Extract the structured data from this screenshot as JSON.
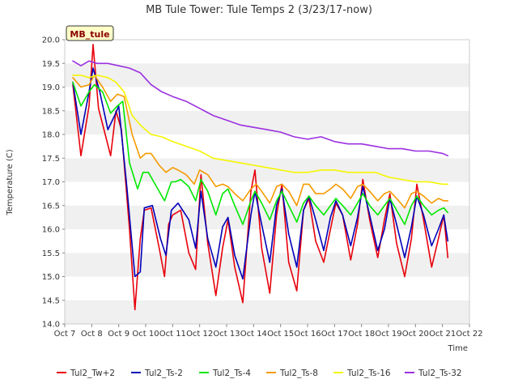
{
  "chart_data": {
    "type": "line",
    "title": "MB Tule Tower: Tule Temps 2 (3/23/17-now)",
    "xlabel": "Time",
    "ylabel": "Temperature (C)",
    "xlim": [
      0,
      15
    ],
    "ylim": [
      14.0,
      20.0
    ],
    "x_ticks": [
      0,
      1,
      2,
      3,
      4,
      5,
      6,
      7,
      8,
      9,
      10,
      11,
      12,
      13,
      14,
      15
    ],
    "x_tick_labels": [
      "Oct 7",
      "Oct 8",
      "Oct 9",
      "Oct 10",
      "Oct 11",
      "Oct 12",
      "Oct 13",
      "Oct 14",
      "Oct 15",
      "Oct 16",
      "Oct 17",
      "Oct 18",
      "Oct 19",
      "Oct 20",
      "Oct 21",
      "Oct 22"
    ],
    "y_ticks": [
      14.0,
      14.5,
      15.0,
      15.5,
      16.0,
      16.5,
      17.0,
      17.5,
      18.0,
      18.5,
      19.0,
      19.5,
      20.0
    ],
    "y_tick_labels": [
      "14.0",
      "14.5",
      "15.0",
      "15.5",
      "16.0",
      "16.5",
      "17.0",
      "17.5",
      "18.0",
      "18.5",
      "19.0",
      "19.5",
      "20.0"
    ],
    "grid": "horizontal alternating bands",
    "legend_position": "bottom",
    "annotation": "MB_tule",
    "series": [
      {
        "name": "Tul2_Tw+2",
        "color": "#e8000b",
        "x": [
          0.3,
          0.6,
          0.9,
          1.05,
          1.25,
          1.5,
          1.7,
          1.9,
          2.1,
          2.4,
          2.6,
          2.8,
          2.95,
          3.2,
          3.5,
          3.7,
          3.85,
          4.0,
          4.3,
          4.6,
          4.85,
          5.05,
          5.3,
          5.6,
          5.85,
          6.05,
          6.3,
          6.6,
          6.9,
          7.05,
          7.3,
          7.6,
          7.85,
          8.05,
          8.3,
          8.6,
          8.85,
          9.05,
          9.3,
          9.6,
          9.85,
          10.05,
          10.3,
          10.6,
          10.85,
          11.05,
          11.3,
          11.6,
          11.85,
          12.05,
          12.3,
          12.6,
          12.85,
          13.05,
          13.3,
          13.6,
          13.85,
          14.05,
          14.2
        ],
        "y": [
          19.05,
          17.55,
          18.6,
          19.9,
          18.55,
          18.0,
          17.55,
          18.5,
          18.1,
          16.0,
          14.3,
          15.8,
          16.4,
          16.45,
          15.6,
          15.0,
          16.1,
          16.3,
          16.4,
          15.5,
          15.15,
          17.15,
          15.7,
          14.6,
          15.6,
          16.2,
          15.2,
          14.45,
          16.8,
          17.25,
          15.6,
          14.65,
          16.3,
          16.95,
          15.3,
          14.7,
          16.4,
          16.65,
          15.75,
          15.3,
          16.0,
          16.55,
          16.3,
          15.35,
          16.1,
          17.05,
          16.2,
          15.4,
          16.2,
          16.75,
          15.7,
          15.0,
          15.8,
          16.95,
          16.2,
          15.2,
          15.8,
          16.3,
          15.4
        ]
      },
      {
        "name": "Tul2_Ts-2",
        "color": "#0000b8",
        "x": [
          0.3,
          0.6,
          0.9,
          1.05,
          1.3,
          1.6,
          1.85,
          2.0,
          2.3,
          2.6,
          2.8,
          2.95,
          3.25,
          3.55,
          3.75,
          3.95,
          4.2,
          4.6,
          4.85,
          5.05,
          5.3,
          5.6,
          5.85,
          6.05,
          6.3,
          6.6,
          6.9,
          7.05,
          7.3,
          7.6,
          7.85,
          8.05,
          8.3,
          8.6,
          8.85,
          9.05,
          9.3,
          9.6,
          9.85,
          10.05,
          10.3,
          10.6,
          10.85,
          11.05,
          11.3,
          11.6,
          11.85,
          12.05,
          12.3,
          12.6,
          12.85,
          13.05,
          13.3,
          13.6,
          13.85,
          14.05,
          14.2
        ],
        "y": [
          19.1,
          18.0,
          18.9,
          19.4,
          18.9,
          18.1,
          18.4,
          18.6,
          16.9,
          15.0,
          15.1,
          16.45,
          16.5,
          15.8,
          15.45,
          16.4,
          16.55,
          16.2,
          15.6,
          16.8,
          15.8,
          15.2,
          16.05,
          16.25,
          15.45,
          14.95,
          16.3,
          16.8,
          16.1,
          15.3,
          16.5,
          16.85,
          15.9,
          15.2,
          16.4,
          16.7,
          16.2,
          15.55,
          16.25,
          16.6,
          16.3,
          15.65,
          16.25,
          16.9,
          16.3,
          15.55,
          16.0,
          16.65,
          16.1,
          15.4,
          16.05,
          16.7,
          16.3,
          15.65,
          16.0,
          16.3,
          15.75
        ]
      },
      {
        "name": "Tul2_Ts-4",
        "color": "#00e800",
        "x": [
          0.3,
          0.6,
          0.9,
          1.1,
          1.4,
          1.7,
          1.95,
          2.15,
          2.4,
          2.7,
          2.9,
          3.1,
          3.4,
          3.7,
          3.95,
          4.1,
          4.3,
          4.6,
          4.85,
          5.05,
          5.3,
          5.6,
          5.85,
          6.05,
          6.3,
          6.6,
          6.9,
          7.05,
          7.3,
          7.6,
          7.85,
          8.05,
          8.3,
          8.6,
          8.85,
          9.05,
          9.3,
          9.6,
          9.85,
          10.05,
          10.3,
          10.6,
          10.85,
          11.05,
          11.3,
          11.6,
          11.85,
          12.05,
          12.3,
          12.6,
          12.85,
          13.05,
          13.3,
          13.6,
          13.85,
          14.05,
          14.2
        ],
        "y": [
          19.1,
          18.6,
          18.9,
          19.05,
          18.9,
          18.45,
          18.6,
          18.7,
          17.4,
          16.85,
          17.2,
          17.2,
          16.9,
          16.6,
          17.0,
          17.0,
          17.05,
          16.9,
          16.6,
          17.05,
          16.8,
          16.3,
          16.75,
          16.85,
          16.5,
          16.1,
          16.6,
          16.8,
          16.55,
          16.2,
          16.6,
          16.8,
          16.5,
          16.15,
          16.55,
          16.7,
          16.5,
          16.3,
          16.5,
          16.65,
          16.5,
          16.3,
          16.55,
          16.75,
          16.5,
          16.3,
          16.5,
          16.65,
          16.4,
          16.1,
          16.5,
          16.7,
          16.5,
          16.3,
          16.4,
          16.45,
          16.35
        ]
      },
      {
        "name": "Tul2_Ts-8",
        "color": "#f59a00",
        "x": [
          0.3,
          0.6,
          0.9,
          1.1,
          1.4,
          1.7,
          1.95,
          2.2,
          2.5,
          2.8,
          3.0,
          3.2,
          3.5,
          3.75,
          4.0,
          4.2,
          4.5,
          4.8,
          5.0,
          5.3,
          5.6,
          5.85,
          6.05,
          6.3,
          6.6,
          6.9,
          7.1,
          7.3,
          7.6,
          7.85,
          8.05,
          8.3,
          8.6,
          8.85,
          9.05,
          9.3,
          9.6,
          9.85,
          10.05,
          10.3,
          10.6,
          10.85,
          11.05,
          11.3,
          11.6,
          11.85,
          12.05,
          12.3,
          12.6,
          12.85,
          13.05,
          13.3,
          13.6,
          13.85,
          14.05,
          14.2
        ],
        "y": [
          19.2,
          19.0,
          19.05,
          19.25,
          19.0,
          18.7,
          18.85,
          18.8,
          18.0,
          17.5,
          17.6,
          17.6,
          17.35,
          17.2,
          17.3,
          17.25,
          17.15,
          16.95,
          17.25,
          17.15,
          16.9,
          16.95,
          16.9,
          16.75,
          16.6,
          16.85,
          16.95,
          16.8,
          16.55,
          16.9,
          16.95,
          16.8,
          16.5,
          16.95,
          16.95,
          16.75,
          16.75,
          16.85,
          16.95,
          16.85,
          16.65,
          16.9,
          16.95,
          16.8,
          16.6,
          16.75,
          16.8,
          16.65,
          16.45,
          16.75,
          16.8,
          16.7,
          16.55,
          16.65,
          16.6,
          16.6
        ]
      },
      {
        "name": "Tul2_Ts-16",
        "color": "#f5f500",
        "x": [
          0.3,
          0.6,
          0.9,
          1.2,
          1.6,
          1.9,
          2.2,
          2.5,
          2.8,
          3.2,
          3.6,
          4.0,
          4.5,
          5.0,
          5.5,
          6.0,
          6.5,
          7.0,
          7.5,
          8.0,
          8.5,
          9.0,
          9.5,
          10.0,
          10.5,
          11.0,
          11.5,
          12.0,
          12.5,
          13.0,
          13.5,
          14.0,
          14.2
        ],
        "y": [
          19.25,
          19.25,
          19.2,
          19.25,
          19.2,
          19.1,
          18.9,
          18.4,
          18.2,
          18.0,
          17.95,
          17.85,
          17.75,
          17.65,
          17.5,
          17.45,
          17.4,
          17.35,
          17.3,
          17.25,
          17.2,
          17.2,
          17.25,
          17.25,
          17.2,
          17.2,
          17.2,
          17.1,
          17.05,
          17.0,
          17.0,
          16.95,
          16.95
        ]
      },
      {
        "name": "Tul2_Ts-32",
        "color": "#9b30e0",
        "x": [
          0.3,
          0.6,
          0.9,
          1.2,
          1.6,
          2.0,
          2.4,
          2.8,
          3.2,
          3.6,
          4.0,
          4.5,
          5.0,
          5.5,
          6.0,
          6.5,
          7.0,
          7.5,
          8.0,
          8.5,
          9.0,
          9.5,
          10.0,
          10.5,
          11.0,
          11.5,
          12.0,
          12.5,
          13.0,
          13.5,
          14.0,
          14.2
        ],
        "y": [
          19.55,
          19.45,
          19.55,
          19.5,
          19.5,
          19.45,
          19.4,
          19.3,
          19.05,
          18.9,
          18.8,
          18.7,
          18.55,
          18.4,
          18.3,
          18.2,
          18.15,
          18.1,
          18.05,
          17.95,
          17.9,
          17.95,
          17.85,
          17.8,
          17.8,
          17.75,
          17.7,
          17.7,
          17.65,
          17.65,
          17.6,
          17.55
        ]
      }
    ]
  }
}
